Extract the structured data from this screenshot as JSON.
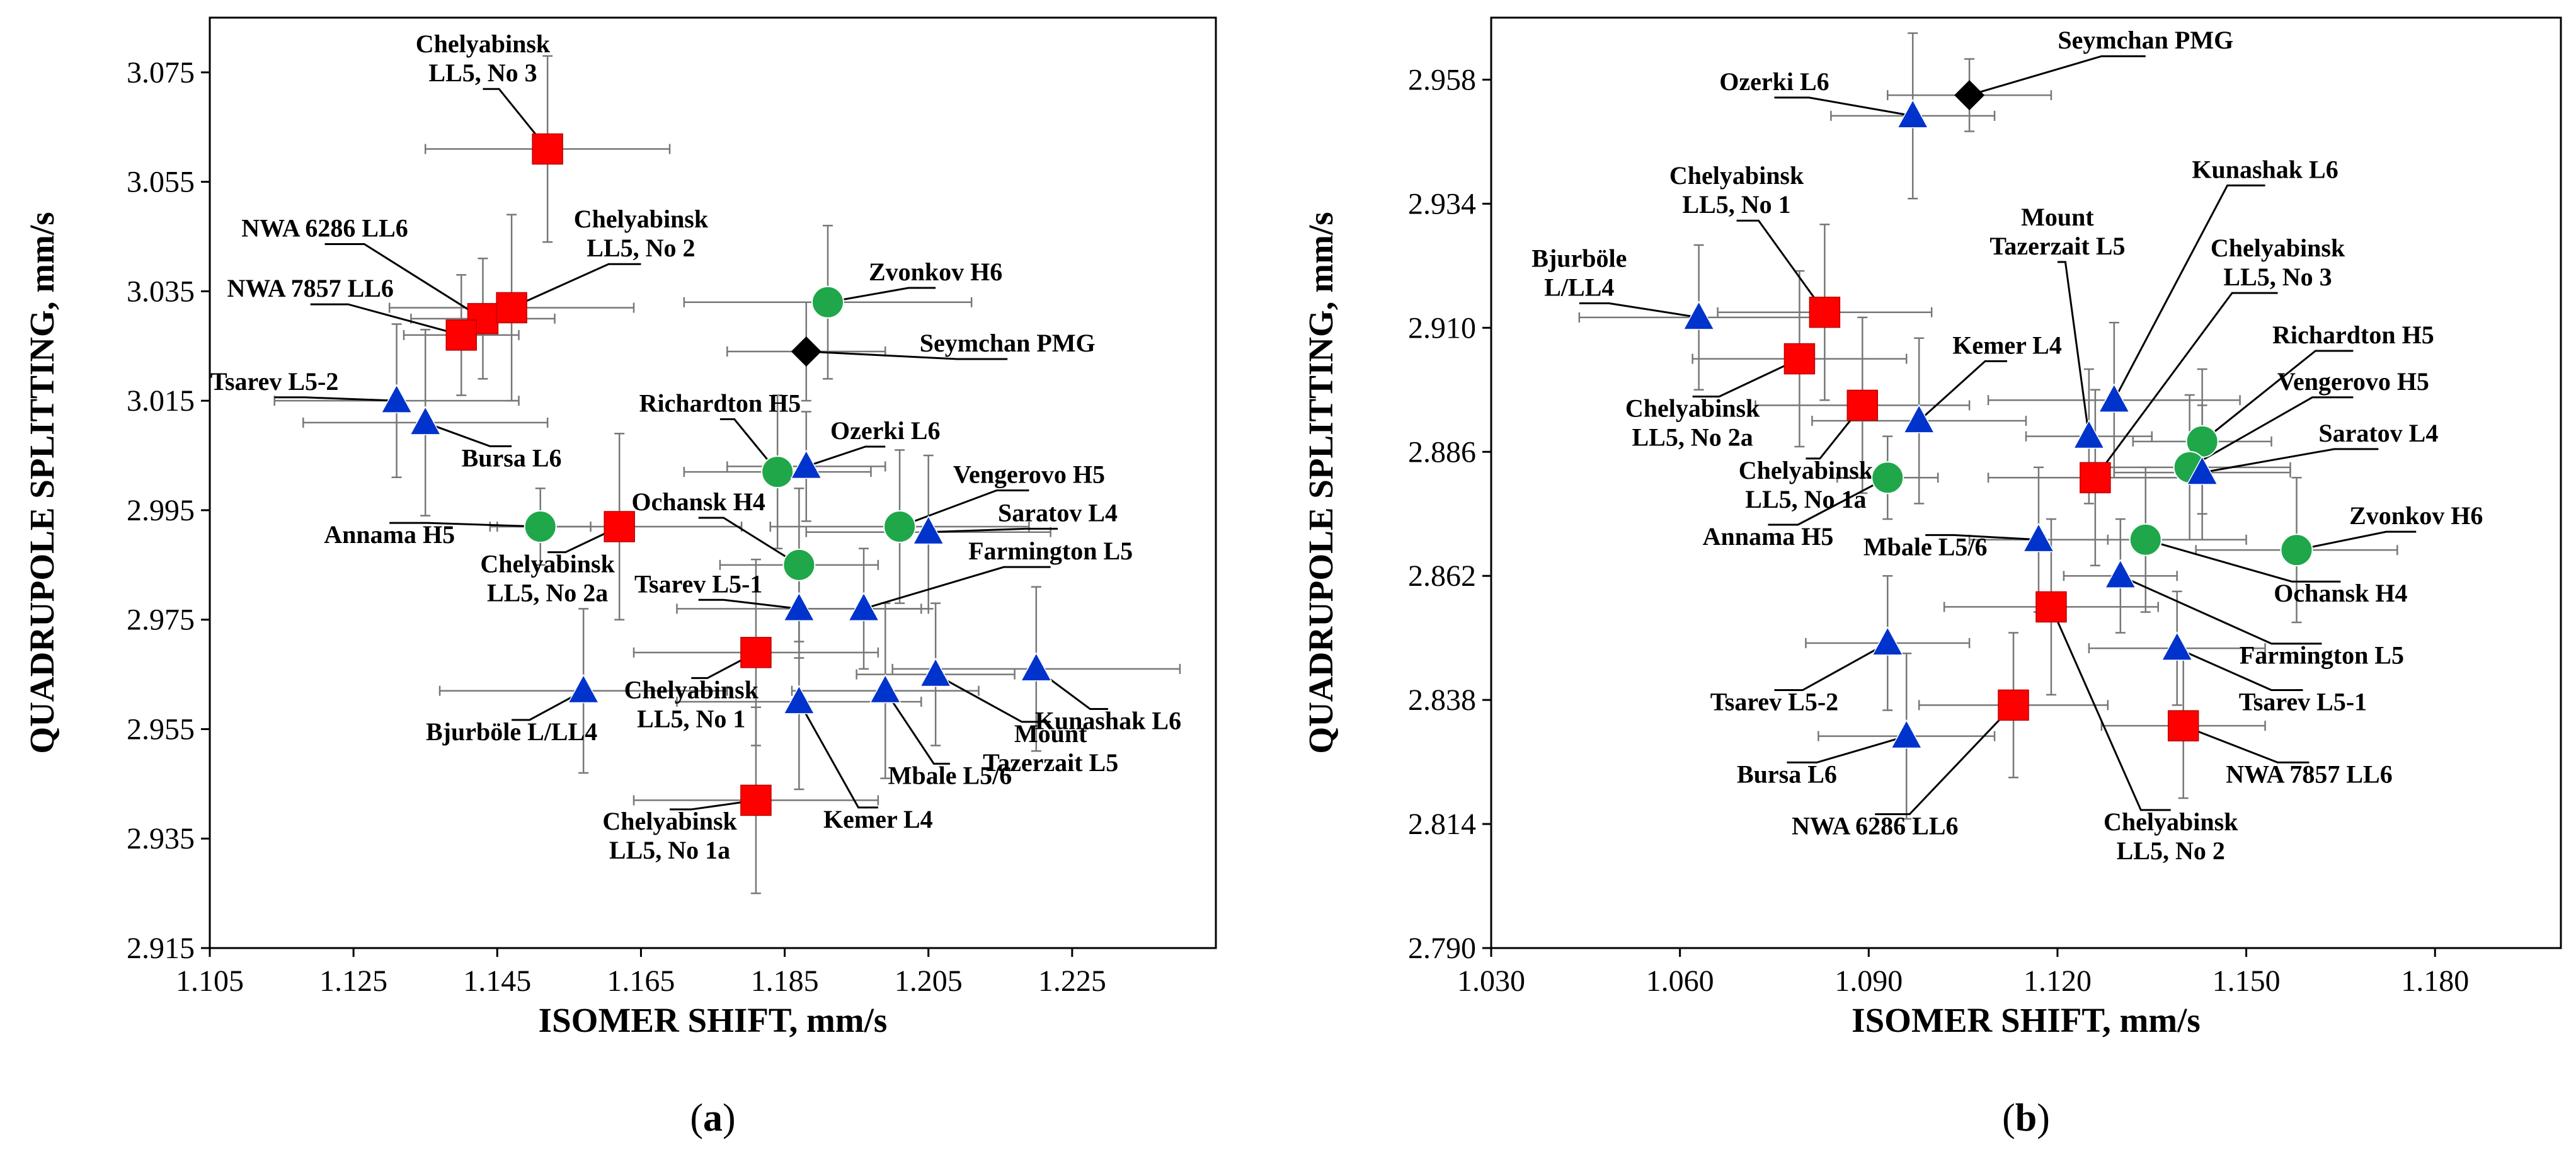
{
  "chart_data": [
    {
      "type": "scatter",
      "panel": "(a)",
      "panel_letter": "a",
      "xlabel": "ISOMER SHIFT, mm/s",
      "ylabel": "QUADRUPOLE SPLITTING, mm/s",
      "xlim": [
        1.105,
        1.245
      ],
      "ylim": [
        2.915,
        3.085
      ],
      "xticks": [
        "1.105",
        "1.125",
        "1.145",
        "1.165",
        "1.185",
        "1.205",
        "1.225"
      ],
      "yticks": [
        "2.915",
        "2.935",
        "2.955",
        "2.975",
        "2.995",
        "3.015",
        "3.035",
        "3.055",
        "3.075"
      ],
      "colors": {
        "square": "#ff0000",
        "circle": "#1fa74a",
        "triangle": "#0033cc",
        "diamond": "#000000"
      },
      "points": [
        {
          "label": "Chelyabinsk LL5, No 3",
          "lines": [
            "Chelyabinsk",
            "LL5, No 3"
          ],
          "marker": "square",
          "x": 1.152,
          "y": 3.061,
          "xerr": 0.017,
          "yerr": 0.017,
          "lx": 1.143,
          "ly": 3.076,
          "anchor": "middle",
          "leader": true
        },
        {
          "label": "NWA 6286 LL6",
          "lines": [
            "NWA 6286 LL6"
          ],
          "marker": "square",
          "x": 1.143,
          "y": 3.03,
          "xerr": 0.01,
          "yerr": 0.011,
          "lx": 1.121,
          "ly": 3.045,
          "anchor": "middle",
          "leader": true
        },
        {
          "label": "NWA 7857 LL6",
          "lines": [
            "NWA 7857 LL6"
          ],
          "marker": "square",
          "x": 1.14,
          "y": 3.027,
          "xerr": 0.008,
          "yerr": 0.011,
          "lx": 1.119,
          "ly": 3.034,
          "anchor": "middle",
          "leader": true
        },
        {
          "label": "Chelyabinsk LL5, No 2",
          "lines": [
            "Chelyabinsk",
            "LL5, No 2"
          ],
          "marker": "square",
          "x": 1.147,
          "y": 3.032,
          "xerr": 0.017,
          "yerr": 0.017,
          "lx": 1.165,
          "ly": 3.044,
          "anchor": "middle",
          "leader": true
        },
        {
          "label": "Zvonkov H6",
          "lines": [
            "Zvonkov H6"
          ],
          "marker": "circle",
          "x": 1.191,
          "y": 3.033,
          "xerr": 0.02,
          "yerr": 0.014,
          "lx": 1.206,
          "ly": 3.037,
          "anchor": "middle",
          "leader": true
        },
        {
          "label": "Seymchan PMG",
          "lines": [
            "Seymchan PMG"
          ],
          "marker": "diamond",
          "x": 1.188,
          "y": 3.024,
          "xerr": 0.011,
          "yerr": 0.009,
          "lx": 1.216,
          "ly": 3.024,
          "anchor": "middle",
          "leader": true
        },
        {
          "label": "Tsarev L5-2",
          "lines": [
            "Tsarev L5-2"
          ],
          "marker": "triangle",
          "x": 1.131,
          "y": 3.015,
          "xerr": 0.017,
          "yerr": 0.014,
          "lx": 1.114,
          "ly": 3.017,
          "anchor": "middle",
          "leader": true
        },
        {
          "label": "Bursa L6",
          "lines": [
            "Bursa L6"
          ],
          "marker": "triangle",
          "x": 1.135,
          "y": 3.011,
          "xerr": 0.017,
          "yerr": 0.017,
          "lx": 1.147,
          "ly": 3.003,
          "anchor": "middle",
          "leader": true
        },
        {
          "label": "Richardton H5",
          "lines": [
            "Richardton H5"
          ],
          "marker": "circle",
          "x": 1.184,
          "y": 3.002,
          "xerr": 0.013,
          "yerr": 0.014,
          "lx": 1.176,
          "ly": 3.013,
          "anchor": "middle",
          "leader": true
        },
        {
          "label": "Ozerki L6",
          "lines": [
            "Ozerki L6"
          ],
          "marker": "triangle",
          "x": 1.188,
          "y": 3.003,
          "xerr": 0.011,
          "yerr": 0.01,
          "lx": 1.199,
          "ly": 3.008,
          "anchor": "middle",
          "leader": true
        },
        {
          "label": "Vengerovo H5",
          "lines": [
            "Vengerovo H5"
          ],
          "marker": "circle",
          "x": 1.201,
          "y": 2.992,
          "xerr": 0.018,
          "yerr": 0.014,
          "lx": 1.219,
          "ly": 3.0,
          "anchor": "middle",
          "leader": true
        },
        {
          "label": "Saratov L4",
          "lines": [
            "Saratov L4"
          ],
          "marker": "triangle",
          "x": 1.205,
          "y": 2.991,
          "xerr": 0.017,
          "yerr": 0.014,
          "lx": 1.223,
          "ly": 2.993,
          "anchor": "middle",
          "leader": true
        },
        {
          "label": "Ochansk H4",
          "lines": [
            "Ochansk H4"
          ],
          "marker": "circle",
          "x": 1.187,
          "y": 2.985,
          "xerr": 0.011,
          "yerr": 0.014,
          "lx": 1.173,
          "ly": 2.995,
          "anchor": "middle",
          "leader": true
        },
        {
          "label": "Annama H5",
          "lines": [
            "Annama H5"
          ],
          "marker": "circle",
          "x": 1.151,
          "y": 2.992,
          "xerr": 0.007,
          "yerr": 0.007,
          "lx": 1.13,
          "ly": 2.989,
          "anchor": "middle",
          "leader": true
        },
        {
          "label": "Chelyabinsk LL5, No 2a",
          "lines": [
            "Chelyabinsk",
            "LL5, No 2a"
          ],
          "marker": "square",
          "x": 1.162,
          "y": 2.992,
          "xerr": 0.017,
          "yerr": 0.017,
          "lx": 1.152,
          "ly": 2.981,
          "anchor": "middle",
          "leader": true
        },
        {
          "label": "Tsarev L5-1",
          "lines": [
            "Tsarev L5-1"
          ],
          "marker": "triangle",
          "x": 1.187,
          "y": 2.977,
          "xerr": 0.017,
          "yerr": 0.009,
          "lx": 1.173,
          "ly": 2.98,
          "anchor": "middle",
          "leader": true
        },
        {
          "label": "Farmington L5",
          "lines": [
            "Farmington L5"
          ],
          "marker": "triangle",
          "x": 1.196,
          "y": 2.977,
          "xerr": 0.009,
          "yerr": 0.011,
          "lx": 1.222,
          "ly": 2.986,
          "anchor": "middle",
          "leader": true
        },
        {
          "label": "Chelyabinsk LL5, No 1",
          "lines": [
            "Chelyabinsk",
            "LL5, No 1"
          ],
          "marker": "square",
          "x": 1.181,
          "y": 2.969,
          "xerr": 0.017,
          "yerr": 0.017,
          "lx": 1.172,
          "ly": 2.958,
          "anchor": "middle",
          "leader": true
        },
        {
          "label": "Bjurböle L/LL4",
          "lines": [
            "Bjurböle L/LL4"
          ],
          "marker": "triangle",
          "x": 1.157,
          "y": 2.962,
          "xerr": 0.02,
          "yerr": 0.015,
          "lx": 1.147,
          "ly": 2.953,
          "anchor": "middle",
          "leader": true
        },
        {
          "label": "Kemer L4",
          "lines": [
            "Kemer L4"
          ],
          "marker": "triangle",
          "x": 1.187,
          "y": 2.96,
          "xerr": 0.017,
          "yerr": 0.016,
          "lx": 1.198,
          "ly": 2.937,
          "anchor": "middle",
          "leader": true
        },
        {
          "label": "Mbale L5/6",
          "lines": [
            "Mbale L5/6"
          ],
          "marker": "triangle",
          "x": 1.199,
          "y": 2.962,
          "xerr": 0.013,
          "yerr": 0.016,
          "lx": 1.208,
          "ly": 2.945,
          "anchor": "middle",
          "leader": true
        },
        {
          "label": "Mount Tazerzait L5",
          "lines": [
            "Mount",
            "Tazerzait L5"
          ],
          "marker": "triangle",
          "x": 1.206,
          "y": 2.965,
          "xerr": 0.011,
          "yerr": 0.013,
          "lx": 1.222,
          "ly": 2.95,
          "anchor": "middle",
          "leader": true
        },
        {
          "label": "Kunashak L6",
          "lines": [
            "Kunashak L6"
          ],
          "marker": "triangle",
          "x": 1.22,
          "y": 2.966,
          "xerr": 0.02,
          "yerr": 0.015,
          "lx": 1.23,
          "ly": 2.955,
          "anchor": "middle",
          "leader": true
        },
        {
          "label": "Chelyabinsk LL5, No 1a",
          "lines": [
            "Chelyabinsk",
            "LL5, No 1a"
          ],
          "marker": "square",
          "x": 1.181,
          "y": 2.942,
          "xerr": 0.017,
          "yerr": 0.017,
          "lx": 1.169,
          "ly": 2.934,
          "anchor": "middle",
          "leader": true
        }
      ]
    },
    {
      "type": "scatter",
      "panel": "(b)",
      "panel_letter": "b",
      "xlabel": "ISOMER SHIFT, mm/s",
      "ylabel": "QUADRUPOLE SPLITTING, mm/s",
      "xlim": [
        1.03,
        1.2
      ],
      "ylim": [
        2.79,
        2.97
      ],
      "xticks": [
        "1.030",
        "1.060",
        "1.090",
        "1.120",
        "1.150",
        "1.180"
      ],
      "yticks": [
        "2.790",
        "2.814",
        "2.838",
        "2.862",
        "2.886",
        "2.910",
        "2.934",
        "2.958"
      ],
      "colors": {
        "square": "#ff0000",
        "circle": "#1fa74a",
        "triangle": "#0033cc",
        "diamond": "#000000"
      },
      "points": [
        {
          "label": "Seymchan PMG",
          "lines": [
            "Seymchan PMG"
          ],
          "marker": "diamond",
          "x": 1.106,
          "y": 2.955,
          "xerr": 0.013,
          "yerr": 0.007,
          "lx": 1.134,
          "ly": 2.964,
          "anchor": "middle",
          "leader": true
        },
        {
          "label": "Ozerki L6",
          "lines": [
            "Ozerki L6"
          ],
          "marker": "triangle",
          "x": 1.097,
          "y": 2.951,
          "xerr": 0.013,
          "yerr": 0.016,
          "lx": 1.075,
          "ly": 2.956,
          "anchor": "middle",
          "leader": true
        },
        {
          "label": "Chelyabinsk LL5, No 1",
          "lines": [
            "Chelyabinsk",
            "LL5, No 1"
          ],
          "marker": "square",
          "x": 1.083,
          "y": 2.913,
          "xerr": 0.017,
          "yerr": 0.017,
          "lx": 1.069,
          "ly": 2.935,
          "anchor": "middle",
          "leader": true
        },
        {
          "label": "Bjurböle L/LL4",
          "lines": [
            "Bjurböle",
            "L/LL4"
          ],
          "marker": "triangle",
          "x": 1.063,
          "y": 2.912,
          "xerr": 0.019,
          "yerr": 0.014,
          "lx": 1.044,
          "ly": 2.919,
          "anchor": "middle",
          "leader": true
        },
        {
          "label": "Chelyabinsk LL5, No 2a",
          "lines": [
            "Chelyabinsk",
            "LL5, No 2a"
          ],
          "marker": "square",
          "x": 1.079,
          "y": 2.904,
          "xerr": 0.017,
          "yerr": 0.017,
          "lx": 1.062,
          "ly": 2.89,
          "anchor": "middle",
          "leader": true
        },
        {
          "label": "Chelyabinsk LL5, No 1a",
          "lines": [
            "Chelyabinsk",
            "LL5, No 1a"
          ],
          "marker": "square",
          "x": 1.089,
          "y": 2.895,
          "xerr": 0.017,
          "yerr": 0.017,
          "lx": 1.08,
          "ly": 2.878,
          "anchor": "middle",
          "leader": true
        },
        {
          "label": "Kemer L4",
          "lines": [
            "Kemer L4"
          ],
          "marker": "triangle",
          "x": 1.098,
          "y": 2.892,
          "xerr": 0.017,
          "yerr": 0.016,
          "lx": 1.112,
          "ly": 2.905,
          "anchor": "middle",
          "leader": true
        },
        {
          "label": "Annama H5",
          "lines": [
            "Annama H5"
          ],
          "marker": "circle",
          "x": 1.093,
          "y": 2.881,
          "xerr": 0.008,
          "yerr": 0.008,
          "lx": 1.074,
          "ly": 2.868,
          "anchor": "middle",
          "leader": true
        },
        {
          "label": "Mount Tazerzait L5",
          "lines": [
            "Mount",
            "Tazerzait L5"
          ],
          "marker": "triangle",
          "x": 1.125,
          "y": 2.889,
          "xerr": 0.01,
          "yerr": 0.013,
          "lx": 1.12,
          "ly": 2.927,
          "anchor": "middle",
          "leader": true
        },
        {
          "label": "Kunashak L6",
          "lines": [
            "Kunashak L6"
          ],
          "marker": "triangle",
          "x": 1.129,
          "y": 2.896,
          "xerr": 0.02,
          "yerr": 0.015,
          "lx": 1.153,
          "ly": 2.939,
          "anchor": "middle",
          "leader": true
        },
        {
          "label": "Chelyabinsk LL5, No 3",
          "lines": [
            "Chelyabinsk",
            "LL5, No 3"
          ],
          "marker": "square",
          "x": 1.126,
          "y": 2.881,
          "xerr": 0.017,
          "yerr": 0.017,
          "lx": 1.155,
          "ly": 2.921,
          "anchor": "middle",
          "leader": true
        },
        {
          "label": "Richardton H5",
          "lines": [
            "Richardton H5"
          ],
          "marker": "circle",
          "x": 1.143,
          "y": 2.888,
          "xerr": 0.011,
          "yerr": 0.014,
          "lx": 1.167,
          "ly": 2.907,
          "anchor": "middle",
          "leader": true
        },
        {
          "label": "Vengerovo H5",
          "lines": [
            "Vengerovo H5"
          ],
          "marker": "circle",
          "x": 1.141,
          "y": 2.883,
          "xerr": 0.016,
          "yerr": 0.014,
          "lx": 1.167,
          "ly": 2.898,
          "anchor": "middle",
          "leader": true
        },
        {
          "label": "Saratov L4",
          "lines": [
            "Saratov L4"
          ],
          "marker": "triangle",
          "x": 1.143,
          "y": 2.882,
          "xerr": 0.014,
          "yerr": 0.013,
          "lx": 1.171,
          "ly": 2.888,
          "anchor": "middle",
          "leader": true
        },
        {
          "label": "Zvonkov H6",
          "lines": [
            "Zvonkov H6"
          ],
          "marker": "circle",
          "x": 1.158,
          "y": 2.867,
          "xerr": 0.016,
          "yerr": 0.014,
          "lx": 1.177,
          "ly": 2.872,
          "anchor": "middle",
          "leader": true
        },
        {
          "label": "Mbale L5/6",
          "lines": [
            "Mbale L5/6"
          ],
          "marker": "triangle",
          "x": 1.117,
          "y": 2.869,
          "xerr": 0.011,
          "yerr": 0.014,
          "lx": 1.099,
          "ly": 2.866,
          "anchor": "middle",
          "leader": true
        },
        {
          "label": "Ochansk H4",
          "lines": [
            "Ochansk H4"
          ],
          "marker": "circle",
          "x": 1.134,
          "y": 2.869,
          "xerr": 0.016,
          "yerr": 0.014,
          "lx": 1.165,
          "ly": 2.857,
          "anchor": "middle",
          "leader": true
        },
        {
          "label": "Farmington L5",
          "lines": [
            "Farmington L5"
          ],
          "marker": "triangle",
          "x": 1.13,
          "y": 2.862,
          "xerr": 0.009,
          "yerr": 0.011,
          "lx": 1.162,
          "ly": 2.845,
          "anchor": "middle",
          "leader": true
        },
        {
          "label": "Chelyabinsk LL5, No 2",
          "lines": [
            "Chelyabinsk",
            "LL5, No 2"
          ],
          "marker": "square",
          "x": 1.119,
          "y": 2.856,
          "xerr": 0.017,
          "yerr": 0.017,
          "lx": 1.138,
          "ly": 2.81,
          "anchor": "middle",
          "leader": true
        },
        {
          "label": "Tsarev L5-1",
          "lines": [
            "Tsarev L5-1"
          ],
          "marker": "triangle",
          "x": 1.139,
          "y": 2.848,
          "xerr": 0.014,
          "yerr": 0.011,
          "lx": 1.159,
          "ly": 2.836,
          "anchor": "middle",
          "leader": true
        },
        {
          "label": "Tsarev L5-2",
          "lines": [
            "Tsarev L5-2"
          ],
          "marker": "triangle",
          "x": 1.093,
          "y": 2.849,
          "xerr": 0.013,
          "yerr": 0.013,
          "lx": 1.075,
          "ly": 2.836,
          "anchor": "middle",
          "leader": true
        },
        {
          "label": "NWA 6286 LL6",
          "lines": [
            "NWA 6286 LL6"
          ],
          "marker": "square",
          "x": 1.113,
          "y": 2.837,
          "xerr": 0.015,
          "yerr": 0.014,
          "lx": 1.091,
          "ly": 2.812,
          "anchor": "middle",
          "leader": true
        },
        {
          "label": "NWA 7857 LL6",
          "lines": [
            "NWA 7857 LL6"
          ],
          "marker": "square",
          "x": 1.14,
          "y": 2.833,
          "xerr": 0.013,
          "yerr": 0.014,
          "lx": 1.16,
          "ly": 2.822,
          "anchor": "middle",
          "leader": true
        },
        {
          "label": "Bursa L6",
          "lines": [
            "Bursa L6"
          ],
          "marker": "triangle",
          "x": 1.096,
          "y": 2.831,
          "xerr": 0.014,
          "yerr": 0.016,
          "lx": 1.077,
          "ly": 2.822,
          "anchor": "middle",
          "leader": true
        }
      ]
    }
  ]
}
